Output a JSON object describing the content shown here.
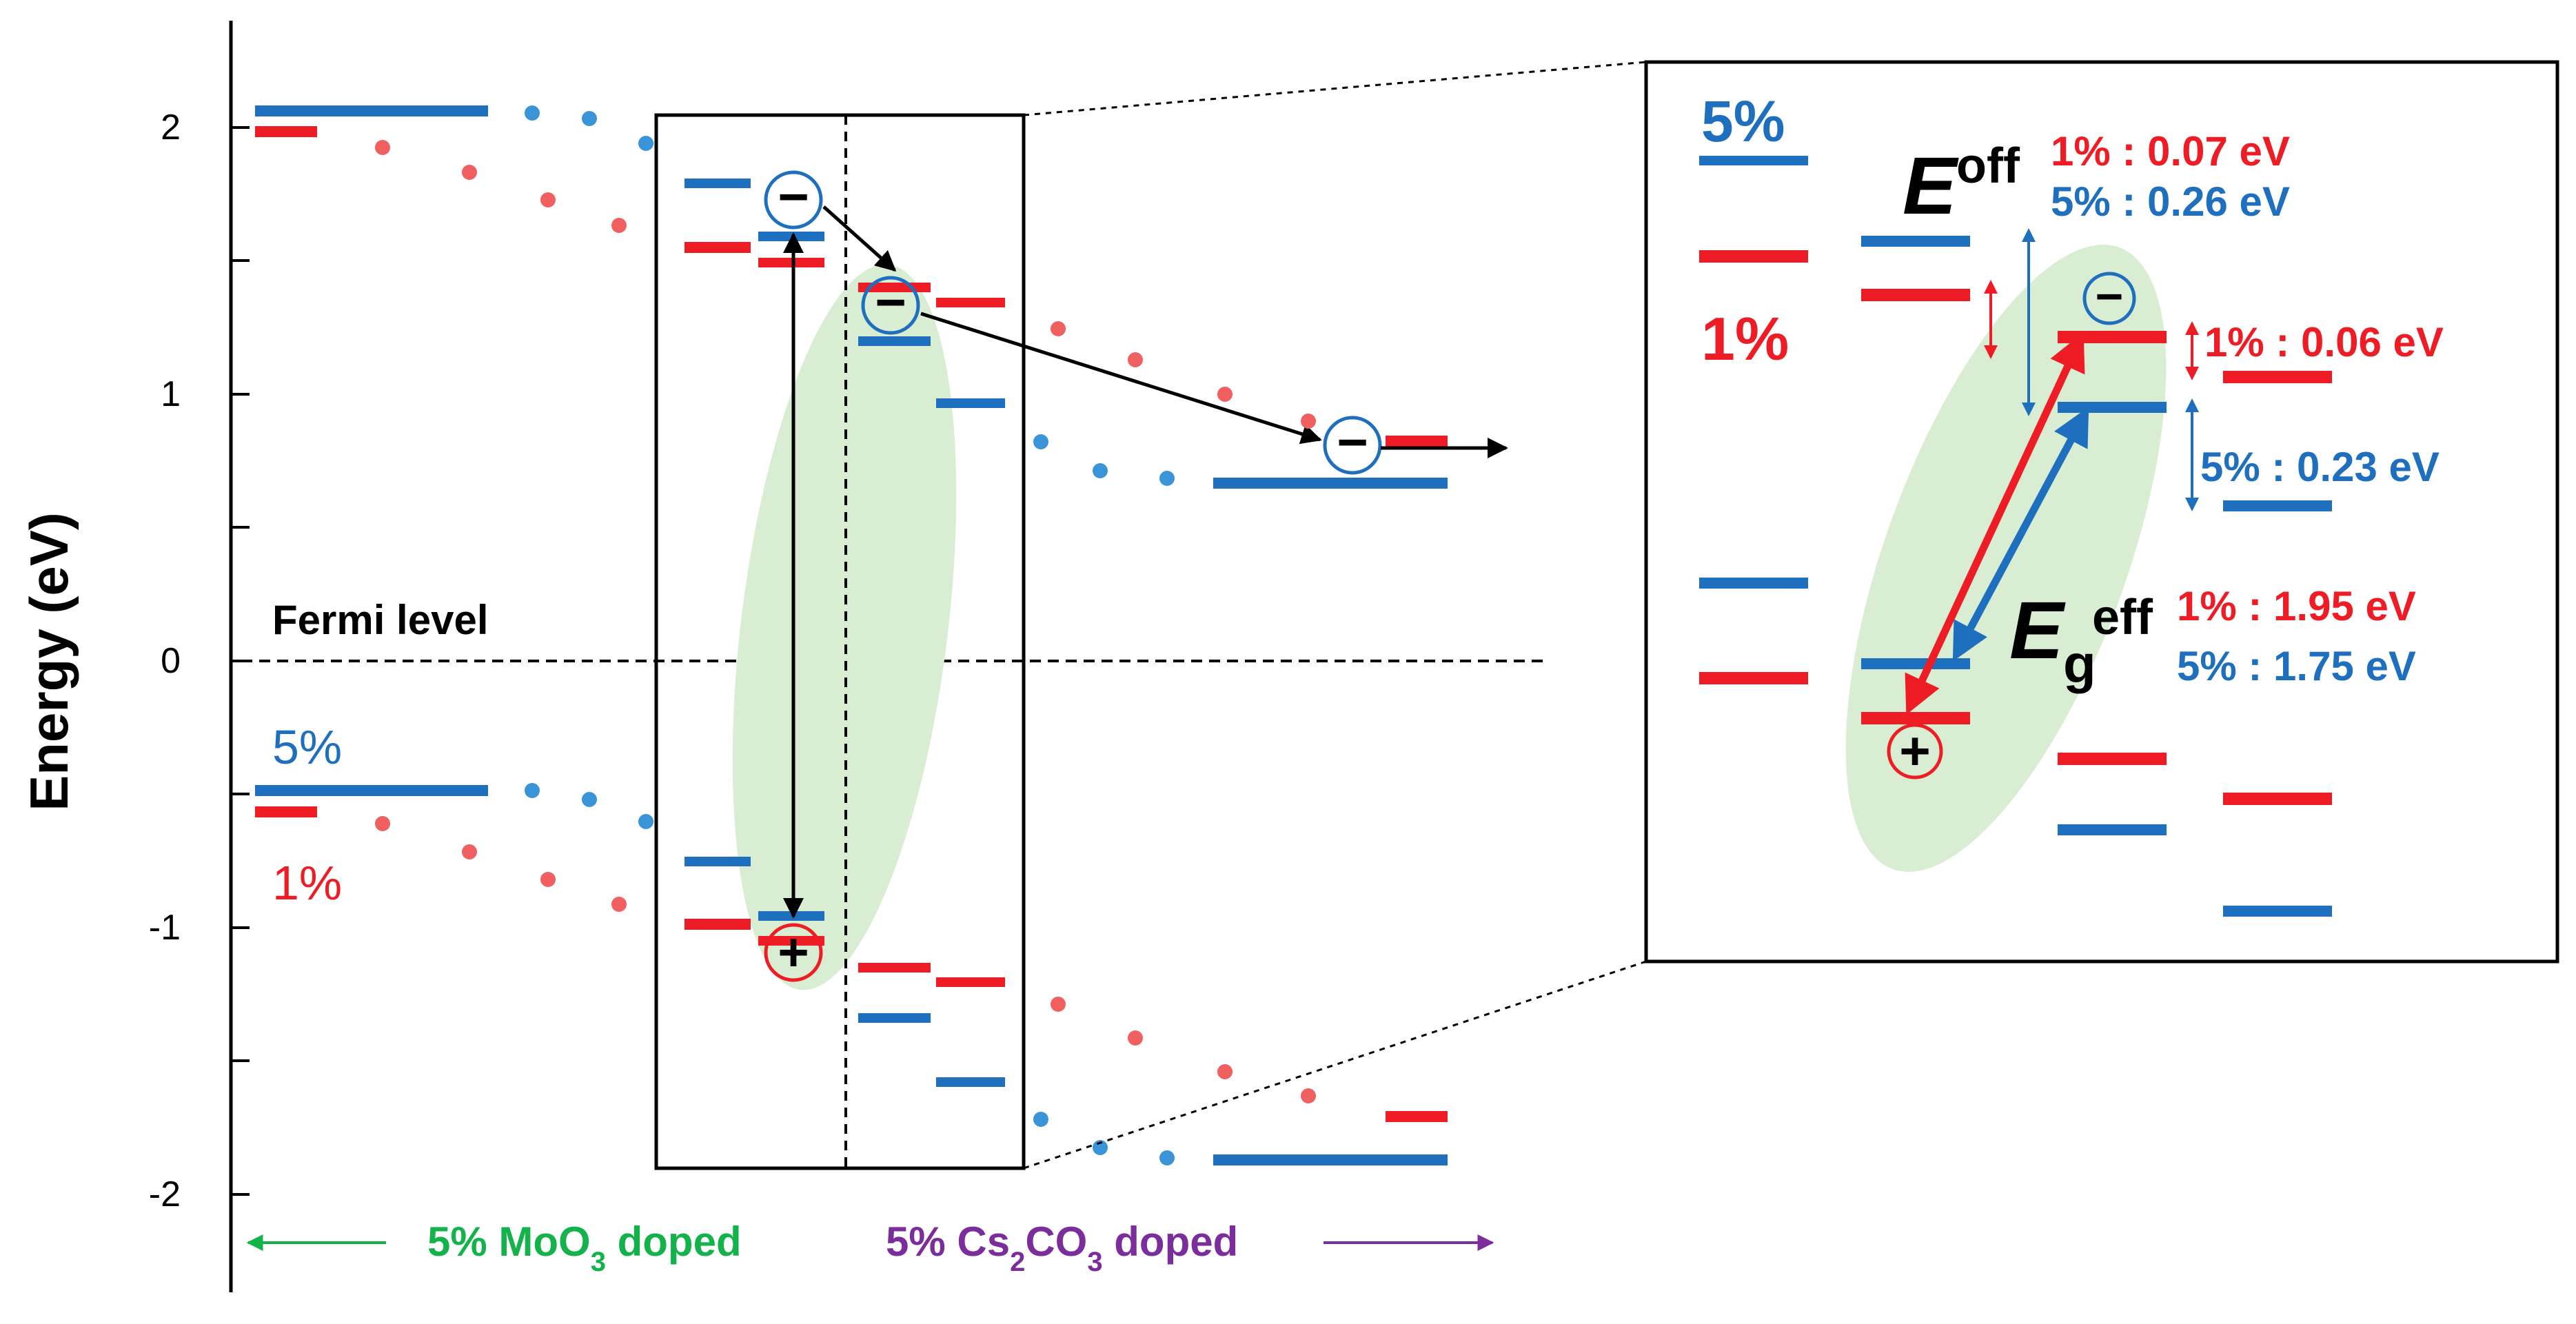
{
  "axis": {
    "ylabel": "Energy (eV)",
    "ticks": [
      {
        "label": "2",
        "value": 2
      },
      {
        "label": "1",
        "value": 1
      },
      {
        "label": "0",
        "value": 0
      },
      {
        "label": "-1",
        "value": -1
      },
      {
        "label": "-2",
        "value": -2
      }
    ]
  },
  "labels": {
    "fermi": "Fermi level",
    "pct5": "5%",
    "pct1": "1%"
  },
  "bottom": {
    "moo3_pre": "5% MoO",
    "moo3_sub": "3",
    "moo3_post": " doped",
    "cs_pre": "5% Cs",
    "cs_sub1": "2",
    "cs_mid": "CO",
    "cs_sub2": "3",
    "cs_post": " doped"
  },
  "inset": {
    "pct5": "5%",
    "pct1": "1%",
    "eoff_main": "E",
    "eoff_sup": "off",
    "eoff_1": "1% : 0.07 eV",
    "eoff_5": "5% : 0.26 eV",
    "step_1": "1% : 0.06 eV",
    "step_5": "5% : 0.23 eV",
    "eg_main": "E",
    "eg_sub": "g",
    "eg_sup": "eff",
    "eg_1": "1% : 1.95 eV",
    "eg_5": "5% : 1.75 eV"
  },
  "symbols": {
    "minus": "−",
    "plus": "+"
  },
  "colors": {
    "red": "#ee1c25",
    "blue": "#1f6fbf",
    "green": "#14b24a",
    "purple": "#7b2d9b",
    "ellipse": "#d9edd2"
  }
}
